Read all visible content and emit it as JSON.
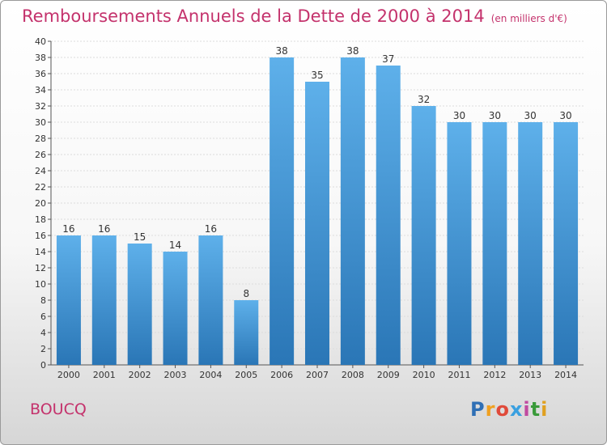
{
  "header": {
    "title": "Remboursements Annuels de la Dette de 2000 à 2014",
    "unit": "(en milliers d'€)"
  },
  "footer": {
    "city": "BOUCQ",
    "logo": [
      "P",
      "r",
      "o",
      "x",
      "i",
      "t",
      "i"
    ],
    "logo_colors": [
      "#2f6fb5",
      "#f0a020",
      "#e04a3a",
      "#3aa0e0",
      "#c04aa0",
      "#3a9a3a",
      "#e0a020"
    ]
  },
  "chart_data": {
    "type": "bar",
    "categories": [
      "2000",
      "2001",
      "2002",
      "2003",
      "2004",
      "2005",
      "2006",
      "2007",
      "2008",
      "2009",
      "2010",
      "2011",
      "2012",
      "2013",
      "2014"
    ],
    "values": [
      16,
      16,
      15,
      14,
      16,
      8,
      38,
      35,
      38,
      37,
      32,
      30,
      30,
      30,
      30
    ],
    "ylim": [
      0,
      40
    ],
    "yticks": [
      0,
      2,
      4,
      6,
      8,
      10,
      12,
      14,
      16,
      18,
      20,
      22,
      24,
      26,
      28,
      30,
      32,
      34,
      36,
      38,
      40
    ],
    "grid": true,
    "bar_color_top": "#5eb0ea",
    "bar_color_bottom": "#2a76b6"
  }
}
